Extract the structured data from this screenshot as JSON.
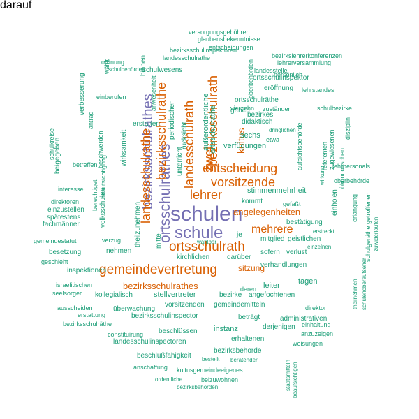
{
  "palette": {
    "teal": "#1b9e77",
    "orange": "#d95f02",
    "purple": "#7570b3"
  },
  "words": [
    {
      "text": "schulen",
      "color": "purple"
    },
    {
      "text": "schule",
      "color": "purple"
    },
    {
      "text": "ortsschulrathes",
      "color": "purple"
    },
    {
      "text": "bezirksschulrathes",
      "color": "purple"
    },
    {
      "text": "ortsschulrath",
      "color": "orange"
    },
    {
      "text": "gemeindevertretung",
      "color": "orange"
    },
    {
      "text": "landesschulrathe",
      "color": "orange"
    },
    {
      "text": "bezirksschulrathe",
      "color": "orange"
    },
    {
      "text": "landesschulrath",
      "color": "orange"
    },
    {
      "text": "bezirksschulrath",
      "color": "orange"
    },
    {
      "text": "entscheidung",
      "color": "orange"
    },
    {
      "text": "vorsitzende",
      "color": "orange"
    },
    {
      "text": "lehrer",
      "color": "orange"
    },
    {
      "text": "zwei",
      "color": "orange"
    },
    {
      "text": "kultus",
      "color": "orange"
    },
    {
      "text": "mehrere",
      "color": "orange"
    },
    {
      "text": "bezirksschulrathes",
      "color": "orange"
    },
    {
      "text": "angelegenheiten",
      "color": "orange"
    },
    {
      "text": "sitzung",
      "color": "orange"
    },
    {
      "text": "ortsschulräthe",
      "color": "teal"
    },
    {
      "text": "außerordentliche",
      "color": "teal"
    },
    {
      "text": "volksschulen",
      "color": "teal"
    },
    {
      "text": "unterricht",
      "color": "teal"
    },
    {
      "text": "wirksamkeit",
      "color": "teal"
    },
    {
      "text": "periodischen",
      "color": "teal"
    },
    {
      "text": "rücksicht",
      "color": "teal"
    },
    {
      "text": "verfügungen",
      "color": "teal"
    },
    {
      "text": "stimmenmehrheit",
      "color": "teal"
    },
    {
      "text": "kommt",
      "color": "teal"
    },
    {
      "text": "mitglied",
      "color": "teal"
    },
    {
      "text": "verhandlungen",
      "color": "teal"
    },
    {
      "text": "bezirke",
      "color": "teal"
    },
    {
      "text": "angefochtenen",
      "color": "teal"
    },
    {
      "text": "vorsitzenden",
      "color": "teal"
    },
    {
      "text": "gemeindemitteln",
      "color": "teal"
    },
    {
      "text": "bezirksschulinspector",
      "color": "teal"
    },
    {
      "text": "landesschulinspectoren",
      "color": "teal"
    },
    {
      "text": "bezirksschulräthe",
      "color": "teal"
    },
    {
      "text": "stellvertreter",
      "color": "teal"
    },
    {
      "text": "kollegialisch",
      "color": "teal"
    },
    {
      "text": "inspektionen",
      "color": "teal"
    },
    {
      "text": "nehmen",
      "color": "teal"
    },
    {
      "text": "kirchlichen",
      "color": "teal"
    },
    {
      "text": "darüber",
      "color": "teal"
    },
    {
      "text": "leiter",
      "color": "teal"
    },
    {
      "text": "tagen",
      "color": "teal"
    },
    {
      "text": "sofern",
      "color": "teal"
    },
    {
      "text": "verlust",
      "color": "teal"
    },
    {
      "text": "bestätigung",
      "color": "teal"
    },
    {
      "text": "geistlichen",
      "color": "teal"
    },
    {
      "text": "gefaßt",
      "color": "teal"
    },
    {
      "text": "sechs",
      "color": "teal"
    },
    {
      "text": "etwa",
      "color": "teal"
    },
    {
      "text": "didaktisch",
      "color": "teal"
    },
    {
      "text": "bezirkes",
      "color": "teal"
    },
    {
      "text": "gehen",
      "color": "teal"
    },
    {
      "text": "ortsschulräthe",
      "color": "teal"
    },
    {
      "text": "zuständen",
      "color": "teal"
    },
    {
      "text": "dringlichen",
      "color": "teal"
    },
    {
      "text": "ortsschulinspektor",
      "color": "teal"
    },
    {
      "text": "eröffnung",
      "color": "teal"
    },
    {
      "text": "lehrstandes",
      "color": "teal"
    },
    {
      "text": "schulbezirke",
      "color": "teal"
    },
    {
      "text": "lehrpersonals",
      "color": "teal"
    },
    {
      "text": "einholen",
      "color": "teal"
    },
    {
      "text": "ökonomischen",
      "color": "teal"
    },
    {
      "text": "referenten",
      "color": "teal"
    },
    {
      "text": "oberbehörde",
      "color": "teal"
    },
    {
      "text": "wirkung",
      "color": "teal"
    },
    {
      "text": "zugewiesenen",
      "color": "teal"
    },
    {
      "text": "aufsichtsbehörde",
      "color": "teal"
    },
    {
      "text": "disziplin",
      "color": "teal"
    },
    {
      "text": "erstreckt",
      "color": "teal"
    },
    {
      "text": "einzelnen",
      "color": "teal"
    },
    {
      "text": "erlangung",
      "color": "teal"
    },
    {
      "text": "getroffenen",
      "color": "teal"
    },
    {
      "text": "zuwiderlaufen",
      "color": "teal"
    },
    {
      "text": "schulgeräthe",
      "color": "teal"
    },
    {
      "text": "schulenoberaufseher",
      "color": "teal"
    },
    {
      "text": "theilnehmen",
      "color": "teal"
    },
    {
      "text": "direktor",
      "color": "teal"
    },
    {
      "text": "administrativen",
      "color": "teal"
    },
    {
      "text": "einhaltung",
      "color": "teal"
    },
    {
      "text": "anzuzeigen",
      "color": "teal"
    },
    {
      "text": "weisungen",
      "color": "teal"
    },
    {
      "text": "derjenigen",
      "color": "teal"
    },
    {
      "text": "beträgt",
      "color": "teal"
    },
    {
      "text": "instanz",
      "color": "teal"
    },
    {
      "text": "beschlüssen",
      "color": "teal"
    },
    {
      "text": "erhaltenen",
      "color": "teal"
    },
    {
      "text": "bezirksbehörde",
      "color": "teal"
    },
    {
      "text": "bestellt",
      "color": "teal"
    },
    {
      "text": "beratender",
      "color": "teal"
    },
    {
      "text": "staatsmitteln",
      "color": "teal"
    },
    {
      "text": "beaufsichtigen",
      "color": "teal"
    },
    {
      "text": "kultusgemeindeeigenes",
      "color": "teal"
    },
    {
      "text": "beizuwohnen",
      "color": "teal"
    },
    {
      "text": "ordentliche",
      "color": "teal"
    },
    {
      "text": "bezirksbehörden",
      "color": "teal"
    },
    {
      "text": "anschaffung",
      "color": "teal"
    },
    {
      "text": "beschlußfähigkeit",
      "color": "teal"
    },
    {
      "text": "constituirung",
      "color": "teal"
    },
    {
      "text": "erstattung",
      "color": "teal"
    },
    {
      "text": "ausscheiden",
      "color": "teal"
    },
    {
      "text": "überwachung",
      "color": "teal"
    },
    {
      "text": "seelsorger",
      "color": "teal"
    },
    {
      "text": "israelitischen",
      "color": "teal"
    },
    {
      "text": "deren",
      "color": "teal"
    },
    {
      "text": "wählbar",
      "color": "teal"
    },
    {
      "text": "je",
      "color": "teal"
    },
    {
      "text": "mitte",
      "color": "teal"
    },
    {
      "text": "theilzunehmen",
      "color": "teal"
    },
    {
      "text": "geschieht",
      "color": "teal"
    },
    {
      "text": "besetzung",
      "color": "teal"
    },
    {
      "text": "gemeindestatut",
      "color": "teal"
    },
    {
      "text": "fachmänner",
      "color": "teal"
    },
    {
      "text": "spätestens",
      "color": "teal"
    },
    {
      "text": "einzustellen",
      "color": "teal"
    },
    {
      "text": "direktoren",
      "color": "teal"
    },
    {
      "text": "interesse",
      "color": "teal"
    },
    {
      "text": "verzug",
      "color": "teal"
    },
    {
      "text": "berechtiget",
      "color": "teal"
    },
    {
      "text": "beaufsichtigung",
      "color": "teal"
    },
    {
      "text": "beschwerden",
      "color": "teal"
    },
    {
      "text": "antrag",
      "color": "teal"
    },
    {
      "text": "betreffen",
      "color": "teal"
    },
    {
      "text": "beigegeben",
      "color": "teal"
    },
    {
      "text": "schulkreise",
      "color": "teal"
    },
    {
      "text": "verbesserung",
      "color": "teal"
    },
    {
      "text": "einberufen",
      "color": "teal"
    },
    {
      "text": "erstatten",
      "color": "teal"
    },
    {
      "text": "anwesenheit",
      "color": "teal"
    },
    {
      "text": "binnen",
      "color": "teal"
    },
    {
      "text": "schulwesens",
      "color": "teal"
    },
    {
      "text": "schulbehörden",
      "color": "teal"
    },
    {
      "text": "ordnung",
      "color": "teal"
    },
    {
      "text": "landesschulrathe",
      "color": "teal"
    },
    {
      "text": "bezirksschulinspektoren",
      "color": "teal"
    },
    {
      "text": "entscheidungen",
      "color": "teal"
    },
    {
      "text": "glaubensbekenntnisse",
      "color": "teal"
    },
    {
      "text": "versorgungsgebühren",
      "color": "teal"
    },
    {
      "text": "bezirkslehrerkonferenzen",
      "color": "teal"
    },
    {
      "text": "lehrerversammlung",
      "color": "teal"
    },
    {
      "text": "landesstelle",
      "color": "teal"
    },
    {
      "text": "persönlich",
      "color": "teal"
    },
    {
      "text": "vierzehn",
      "color": "teal"
    },
    {
      "text": "oberbehörden",
      "color": "teal"
    },
    {
      "text": "wählt",
      "color": "teal"
    },
    {
      "text": "darauf",
      "color": "teal"
    }
  ]
}
